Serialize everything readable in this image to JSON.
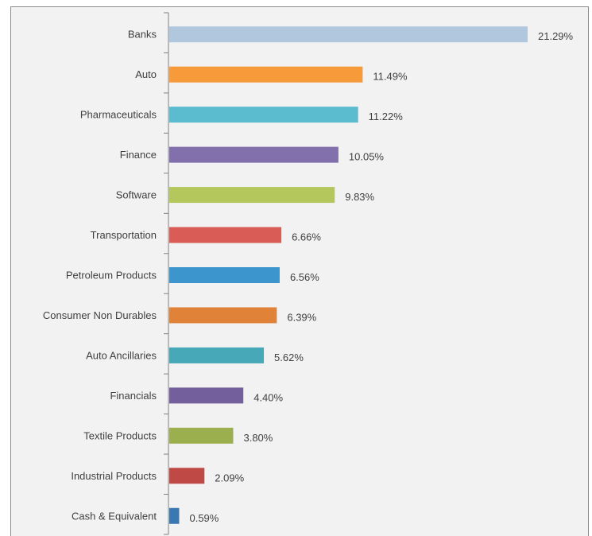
{
  "chart_data": {
    "type": "bar",
    "orientation": "horizontal",
    "categories": [
      "Banks",
      "Auto",
      "Pharmaceuticals",
      "Finance",
      "Software",
      "Transportation",
      "Petroleum Products",
      "Consumer Non Durables",
      "Auto Ancillaries",
      "Financials",
      "Textile Products",
      "Industrial Products",
      "Cash & Equivalent"
    ],
    "values": [
      21.29,
      11.49,
      11.22,
      10.05,
      9.83,
      6.66,
      6.56,
      6.39,
      5.62,
      4.4,
      3.8,
      2.09,
      0.59
    ],
    "value_labels": [
      "21.29%",
      "11.49%",
      "11.22%",
      "10.05%",
      "9.83%",
      "6.66%",
      "6.56%",
      "6.39%",
      "5.62%",
      "4.40%",
      "3.80%",
      "2.09%",
      "0.59%"
    ],
    "colors": [
      "#b0c7dd",
      "#f79a3a",
      "#5bbcd0",
      "#8270ad",
      "#b4c75c",
      "#d95d56",
      "#3d95cd",
      "#e08338",
      "#47a8b8",
      "#735f9b",
      "#9caf4e",
      "#bf4944",
      "#3a78b1"
    ],
    "xlim": [
      0,
      21.29
    ],
    "grid": false,
    "legend": "none"
  }
}
